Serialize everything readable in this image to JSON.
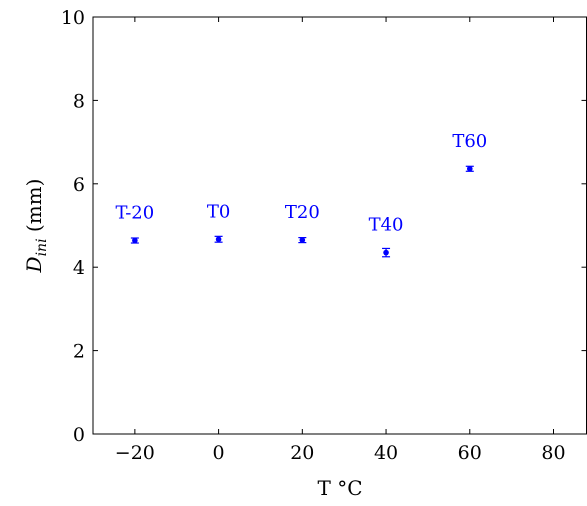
{
  "chart_data": {
    "type": "scatter",
    "xlabel": "T °C",
    "ylabel": {
      "symbol": "D",
      "subscript": "ini",
      "unit": " (mm)"
    },
    "xlim": [
      -30,
      88
    ],
    "ylim": [
      0,
      10
    ],
    "xticks": [
      -20,
      0,
      20,
      40,
      60,
      80
    ],
    "xtick_labels": [
      "−20",
      "0",
      "20",
      "40",
      "60",
      "80"
    ],
    "yticks": [
      0,
      2,
      4,
      6,
      8,
      10
    ],
    "ytick_labels": [
      "0",
      "2",
      "4",
      "6",
      "8",
      "10"
    ],
    "grid": false,
    "marker_color": "#0000ff",
    "points": [
      {
        "label": "T-20",
        "x": -20,
        "y": 4.64,
        "err": 0.06
      },
      {
        "label": "T0",
        "x": 0,
        "y": 4.67,
        "err": 0.07
      },
      {
        "label": "T20",
        "x": 20,
        "y": 4.65,
        "err": 0.06
      },
      {
        "label": "T40",
        "x": 40,
        "y": 4.35,
        "err": 0.1
      },
      {
        "label": "T60",
        "x": 60,
        "y": 6.36,
        "err": 0.06
      }
    ]
  }
}
